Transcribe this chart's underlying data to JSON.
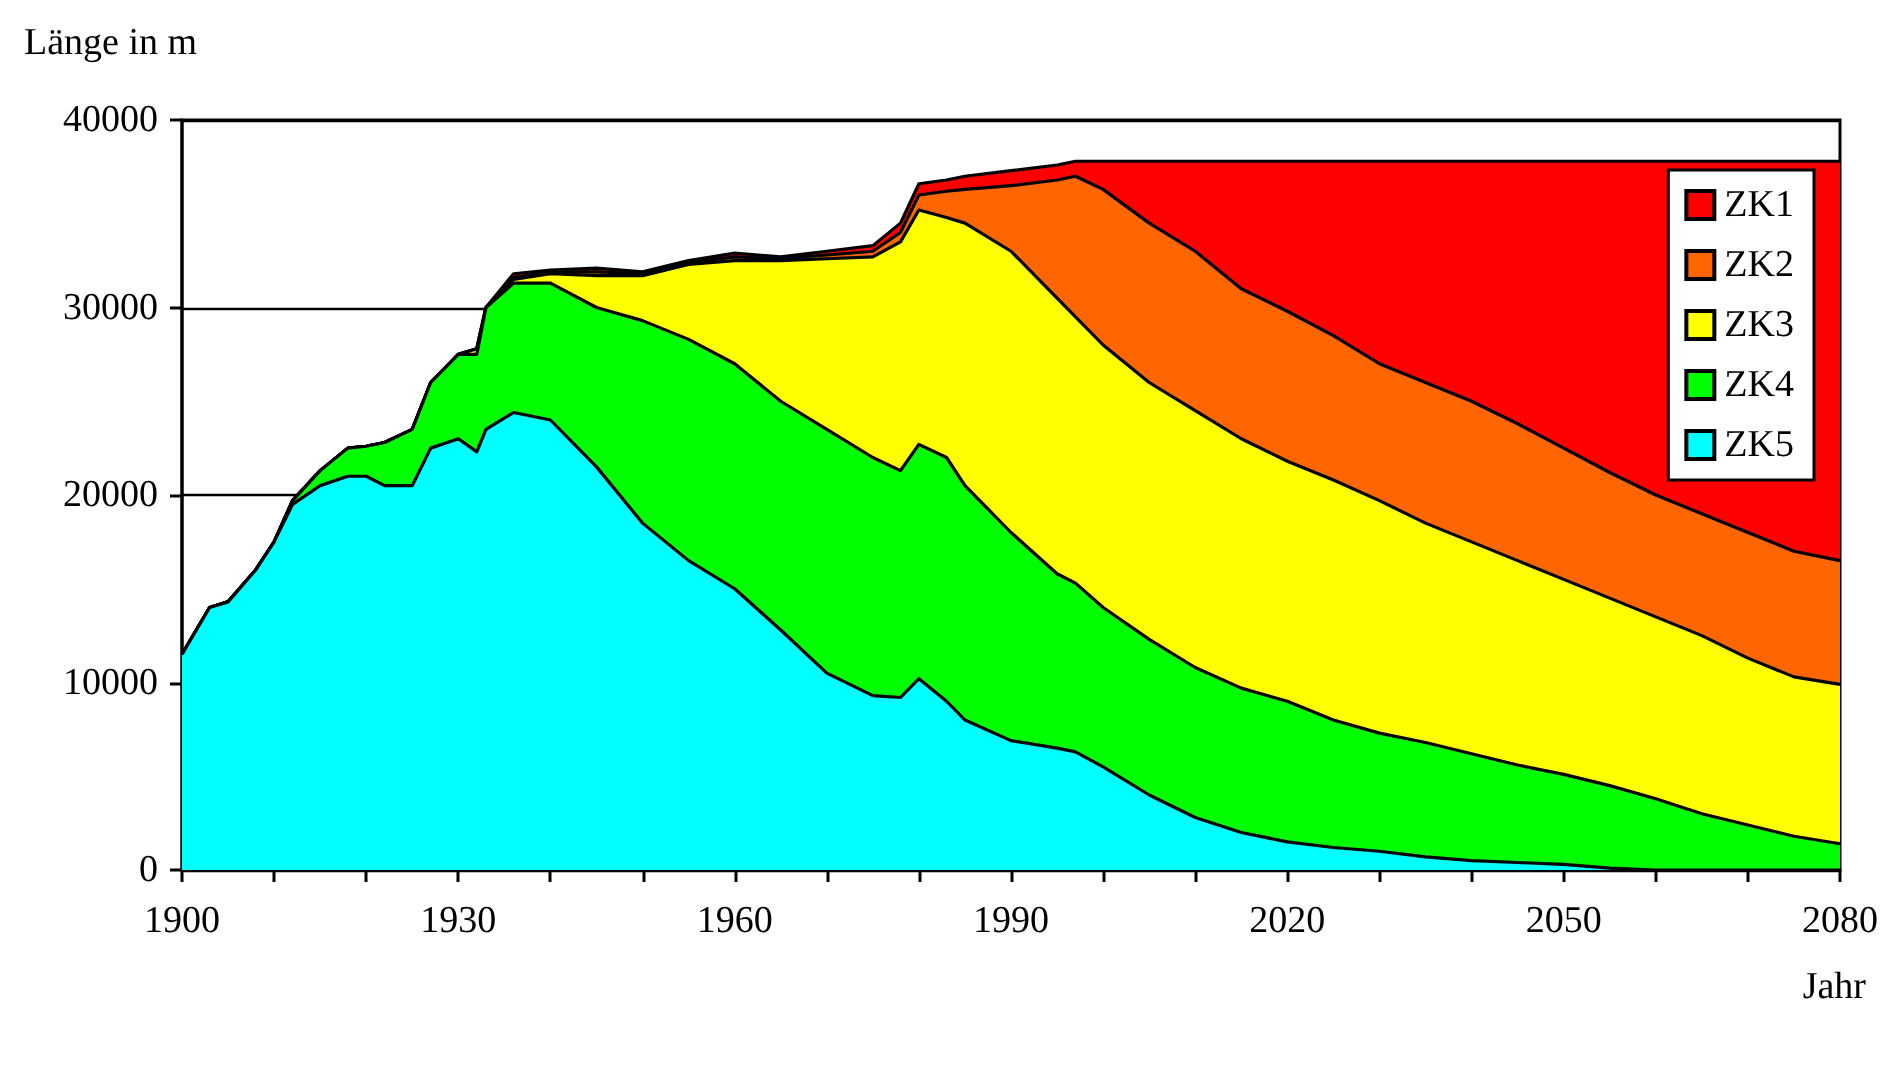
{
  "chart_data": {
    "type": "area",
    "stacked": true,
    "xlabel": "Jahr",
    "ylabel": "Länge in m",
    "x": [
      1900,
      1903,
      1905,
      1908,
      1910,
      1912,
      1915,
      1918,
      1920,
      1922,
      1925,
      1927,
      1930,
      1932,
      1933,
      1936,
      1940,
      1945,
      1950,
      1955,
      1960,
      1965,
      1970,
      1975,
      1978,
      1980,
      1983,
      1985,
      1990,
      1995,
      1997,
      2000,
      2005,
      2010,
      2015,
      2020,
      2025,
      2030,
      2035,
      2040,
      2045,
      2050,
      2055,
      2060,
      2065,
      2070,
      2075,
      2080
    ],
    "series": [
      {
        "name": "ZK5",
        "color": "#00ffff",
        "values": [
          11500,
          14000,
          14300,
          16000,
          17500,
          19500,
          20500,
          21000,
          21000,
          20500,
          20500,
          22500,
          23000,
          22300,
          23500,
          24400,
          24000,
          21500,
          18500,
          16500,
          15000,
          12800,
          10500,
          9300,
          9200,
          10200,
          9000,
          8000,
          6900,
          6500,
          6300,
          5500,
          4000,
          2800,
          2000,
          1500,
          1200,
          1000,
          700,
          500,
          400,
          300,
          100,
          0,
          0,
          0,
          0,
          0
        ]
      },
      {
        "name": "ZK4",
        "color": "#00ff00",
        "values": [
          0,
          0,
          0,
          0,
          0,
          200,
          800,
          1500,
          1600,
          2300,
          3000,
          3500,
          4500,
          5200,
          6500,
          6900,
          7300,
          8500,
          10800,
          11800,
          12000,
          12200,
          13000,
          12700,
          12100,
          12500,
          13000,
          12500,
          11100,
          9300,
          9000,
          8500,
          8300,
          8000,
          7700,
          7500,
          6800,
          6300,
          6100,
          5700,
          5200,
          4800,
          4400,
          3800,
          3000,
          2400,
          1800,
          1400
        ]
      },
      {
        "name": "ZK3",
        "color": "#ffff00",
        "values": [
          0,
          0,
          0,
          0,
          0,
          0,
          0,
          0,
          0,
          0,
          0,
          0,
          0,
          300,
          0,
          200,
          500,
          1700,
          2400,
          4000,
          5500,
          7500,
          9100,
          10700,
          12200,
          12500,
          12800,
          14000,
          15000,
          14700,
          14200,
          14000,
          13700,
          13700,
          13300,
          12800,
          12800,
          12400,
          11700,
          11300,
          10900,
          10400,
          10000,
          9700,
          9500,
          8900,
          8500,
          8500
        ]
      },
      {
        "name": "ZK2",
        "color": "#ff6600",
        "values": [
          0,
          0,
          0,
          0,
          0,
          0,
          0,
          0,
          0,
          0,
          0,
          0,
          0,
          0,
          0,
          100,
          100,
          200,
          100,
          100,
          200,
          100,
          200,
          300,
          500,
          800,
          1400,
          1800,
          3500,
          6300,
          7500,
          8300,
          8500,
          8500,
          8000,
          8000,
          7700,
          7300,
          7500,
          7500,
          7300,
          7000,
          6700,
          6500,
          6500,
          6700,
          6700,
          6600
        ]
      },
      {
        "name": "ZK1",
        "color": "#ff0000",
        "values": [
          0,
          0,
          0,
          0,
          0,
          0,
          0,
          0,
          0,
          0,
          0,
          0,
          0,
          0,
          0,
          200,
          100,
          200,
          100,
          100,
          200,
          100,
          200,
          300,
          500,
          600,
          600,
          700,
          800,
          800,
          800,
          1500,
          3300,
          4800,
          6800,
          8000,
          9300,
          10800,
          11800,
          12800,
          14000,
          15300,
          16600,
          17800,
          18800,
          19800,
          20800,
          21300
        ]
      }
    ],
    "xlim": [
      1900,
      2080
    ],
    "xticks": [
      1900,
      {
        "value": 1910,
        "label": null
      },
      {
        "value": 1920,
        "label": null
      },
      1930,
      {
        "value": 1940,
        "label": null
      },
      {
        "value": 1950,
        "label": null
      },
      1960,
      {
        "value": 1970,
        "label": null
      },
      {
        "value": 1980,
        "label": null
      },
      1990,
      {
        "value": 2000,
        "label": null
      },
      {
        "value": 2010,
        "label": null
      },
      2020,
      {
        "value": 2030,
        "label": null
      },
      {
        "value": 2040,
        "label": null
      },
      2050,
      {
        "value": 2060,
        "label": null
      },
      {
        "value": 2070,
        "label": null
      },
      2080
    ],
    "ylim": [
      0,
      40000
    ],
    "yticks": [
      0,
      10000,
      20000,
      30000,
      40000
    ],
    "grid": "y",
    "legend": "top right",
    "marker": "none",
    "line_style": "solid"
  }
}
